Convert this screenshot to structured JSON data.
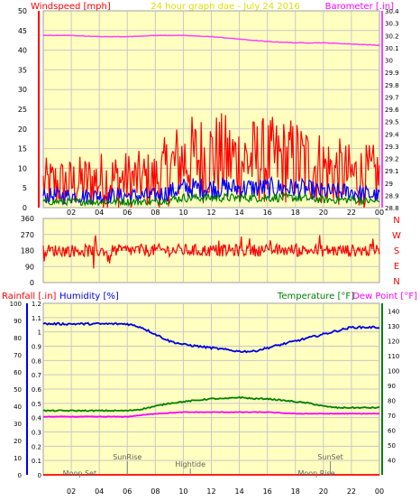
{
  "header": {
    "windspeed_label": "Windspeed [mph]",
    "title": "24 hour graph dae - July 24 2016",
    "barometer_label": "Barometer [.in]"
  },
  "direction_labels": [
    "N",
    "W",
    "S",
    "E",
    "N"
  ],
  "lower_header": {
    "rainfall_label": "Rainfall [.in]",
    "humidity_label": "Humidity [%]",
    "temperature_label": "Temperature [°F]",
    "dewpoint_label": "Dew Point [°F]"
  },
  "colors": {
    "plot_bg": "#ffffc0",
    "grid": "#c8c8c8",
    "wind_gust": "#ff0000",
    "wind_avg": "#0000ff",
    "wind_low": "#008000",
    "barometer": "#ff40ff",
    "direction": "#ff0000",
    "humidity": "#0000dd",
    "temperature": "#008000",
    "dewpoint": "#ff00ff",
    "rainfall_axis": "#0000dd",
    "title": "#e0e000"
  },
  "chart_data": [
    {
      "type": "line",
      "name": "wind-barometer",
      "x_ticks": [
        "02",
        "04",
        "06",
        "08",
        "10",
        "12",
        "14",
        "16",
        "18",
        "20",
        "22",
        "00"
      ],
      "xlim": [
        0,
        24
      ],
      "left_axis": {
        "label": "Windspeed [mph]",
        "ylim": [
          0,
          50
        ],
        "ticks": [
          0,
          5,
          10,
          15,
          20,
          25,
          30,
          35,
          40,
          45,
          50
        ]
      },
      "right_axis": {
        "label": "Barometer [.in]",
        "ylim": [
          28.8,
          30.4
        ],
        "ticks": [
          28.8,
          28.9,
          29.0,
          29.1,
          29.2,
          29.3,
          29.4,
          29.5,
          29.6,
          29.7,
          29.8,
          29.9,
          30.0,
          30.1,
          30.2,
          30.3,
          30.4
        ],
        "tick_labels": [
          "28.8",
          "28.9",
          "29",
          "29.1",
          "29.2",
          "29.3",
          "29.4",
          "29.5",
          "29.6",
          "29.7",
          "29.8",
          "29.9",
          "30",
          "30.1",
          "30.2",
          "30.3",
          "30.4"
        ]
      },
      "barometer": {
        "x": [
          0,
          2,
          4,
          6,
          8,
          10,
          12,
          14,
          16,
          18,
          20,
          22,
          24
        ],
        "y": [
          30.2,
          30.2,
          30.19,
          30.19,
          30.2,
          30.2,
          30.19,
          30.17,
          30.15,
          30.14,
          30.14,
          30.13,
          30.12
        ]
      },
      "wind_gust_envelope": {
        "x": [
          0,
          2,
          4,
          6,
          8,
          9,
          10,
          12,
          14,
          16,
          18,
          20,
          22,
          24
        ],
        "y": [
          6,
          6,
          7,
          7,
          7,
          10,
          12,
          13,
          12,
          12,
          12,
          10,
          8,
          8
        ]
      },
      "wind_avg_envelope": {
        "x": [
          0,
          2,
          4,
          6,
          8,
          9,
          10,
          12,
          14,
          16,
          18,
          20,
          22,
          24
        ],
        "y": [
          3,
          3,
          3,
          3,
          3,
          4,
          5,
          5,
          5,
          5,
          5,
          4,
          4,
          3
        ]
      },
      "wind_low_envelope": {
        "x": [
          0,
          2,
          4,
          6,
          8,
          9,
          10,
          12,
          14,
          16,
          18,
          20,
          22,
          24
        ],
        "y": [
          1.5,
          1.5,
          1.5,
          1.5,
          1.5,
          2,
          2.5,
          2.5,
          2.5,
          2.5,
          2.5,
          2,
          2,
          1.5
        ]
      }
    },
    {
      "type": "line",
      "name": "wind-direction",
      "xlim": [
        0,
        24
      ],
      "left_axis": {
        "ylim": [
          0,
          360
        ],
        "ticks": [
          0,
          90,
          180,
          270,
          360
        ]
      },
      "direction": {
        "x": [
          0,
          4,
          8,
          12,
          16,
          20,
          24
        ],
        "y": [
          180,
          178,
          182,
          180,
          182,
          180,
          180
        ],
        "spread": 35
      }
    },
    {
      "type": "line",
      "name": "rain-humidity-temperature",
      "x_ticks": [
        "02",
        "04",
        "06",
        "08",
        "10",
        "12",
        "14",
        "16",
        "18",
        "20",
        "22",
        "00"
      ],
      "xlim": [
        0,
        24
      ],
      "rainfall_axis": {
        "label": "Rainfall [.in]",
        "ylim": [
          0,
          1.2
        ],
        "ticks": [
          0,
          0.1,
          0.2,
          0.3,
          0.4,
          0.5,
          0.6,
          0.7,
          0.8,
          0.9,
          1,
          1.1,
          1.2
        ],
        "tick_labels": [
          "0",
          "0.1",
          "0.2",
          "0.3",
          "0.4",
          "0.5",
          "0.6",
          "0.7",
          "0.8",
          "0.9",
          "1",
          "1.1",
          "1.2"
        ]
      },
      "humidity_axis": {
        "label": "Humidity [%]",
        "ylim": [
          0,
          100
        ],
        "ticks": [
          0,
          10,
          20,
          30,
          40,
          50,
          60,
          70,
          80,
          90,
          100
        ]
      },
      "temperature_axis": {
        "label": "Temperature [°F]",
        "ylim": [
          30,
          145
        ],
        "ticks": [
          40,
          50,
          60,
          70,
          80,
          90,
          100,
          110,
          120,
          130,
          140
        ]
      },
      "humidity": {
        "x": [
          0,
          4,
          6,
          7,
          8,
          9,
          10,
          11,
          12,
          13,
          14,
          15,
          16,
          17,
          18,
          19,
          20,
          21,
          22,
          24
        ],
        "y": [
          88,
          88,
          88,
          86,
          82,
          78,
          76,
          75,
          74,
          73,
          72,
          72,
          74,
          76,
          78,
          80,
          82,
          84,
          86,
          86
        ]
      },
      "temperature": {
        "x": [
          0,
          4,
          6,
          7,
          8,
          9,
          10,
          11,
          12,
          13,
          14,
          15,
          16,
          17,
          18,
          19,
          20,
          21,
          22,
          24
        ],
        "y": [
          73,
          73,
          73,
          74,
          76,
          78,
          79,
          80,
          81,
          81,
          82,
          81,
          81,
          80,
          79,
          78,
          76,
          75,
          75,
          75
        ]
      },
      "dewpoint": {
        "x": [
          0,
          4,
          6,
          7,
          8,
          10,
          12,
          14,
          16,
          18,
          20,
          22,
          24
        ],
        "y": [
          69,
          69,
          69,
          70,
          71,
          72,
          72,
          72,
          72,
          71,
          71,
          71,
          71
        ]
      },
      "rainfall": {
        "x": [
          0,
          24
        ],
        "y": [
          0,
          0
        ]
      },
      "events": [
        {
          "label": "Moon Set",
          "x": 2.6,
          "level": "low"
        },
        {
          "label": "SunRise",
          "x": 6.0,
          "level": "high"
        },
        {
          "label": "Hightide",
          "x": 10.5,
          "level": "mid"
        },
        {
          "label": "SunSet",
          "x": 20.5,
          "level": "high"
        },
        {
          "label": "Moon Rise",
          "x": 19.5,
          "level": "low"
        }
      ]
    }
  ]
}
